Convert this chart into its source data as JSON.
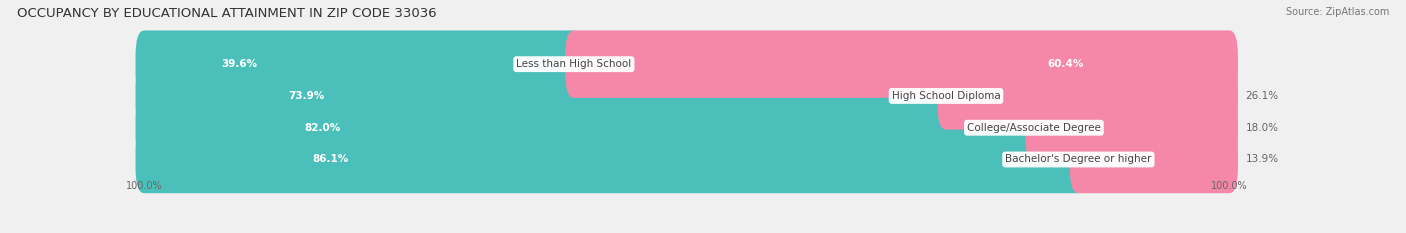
{
  "title": "OCCUPANCY BY EDUCATIONAL ATTAINMENT IN ZIP CODE 33036",
  "source": "Source: ZipAtlas.com",
  "categories": [
    "Less than High School",
    "High School Diploma",
    "College/Associate Degree",
    "Bachelor's Degree or higher"
  ],
  "owner_pct": [
    39.6,
    73.9,
    82.0,
    86.1
  ],
  "renter_pct": [
    60.4,
    26.1,
    18.0,
    13.9
  ],
  "owner_color": "#4bbfba",
  "renter_color": "#f587a8",
  "bg_color": "#f0f0f0",
  "bar_bg_color": "#e0e0e0",
  "title_fontsize": 9.5,
  "source_fontsize": 7,
  "label_fontsize": 7.5,
  "pct_fontsize": 7.5,
  "axis_label_fontsize": 7,
  "legend_fontsize": 7.5
}
